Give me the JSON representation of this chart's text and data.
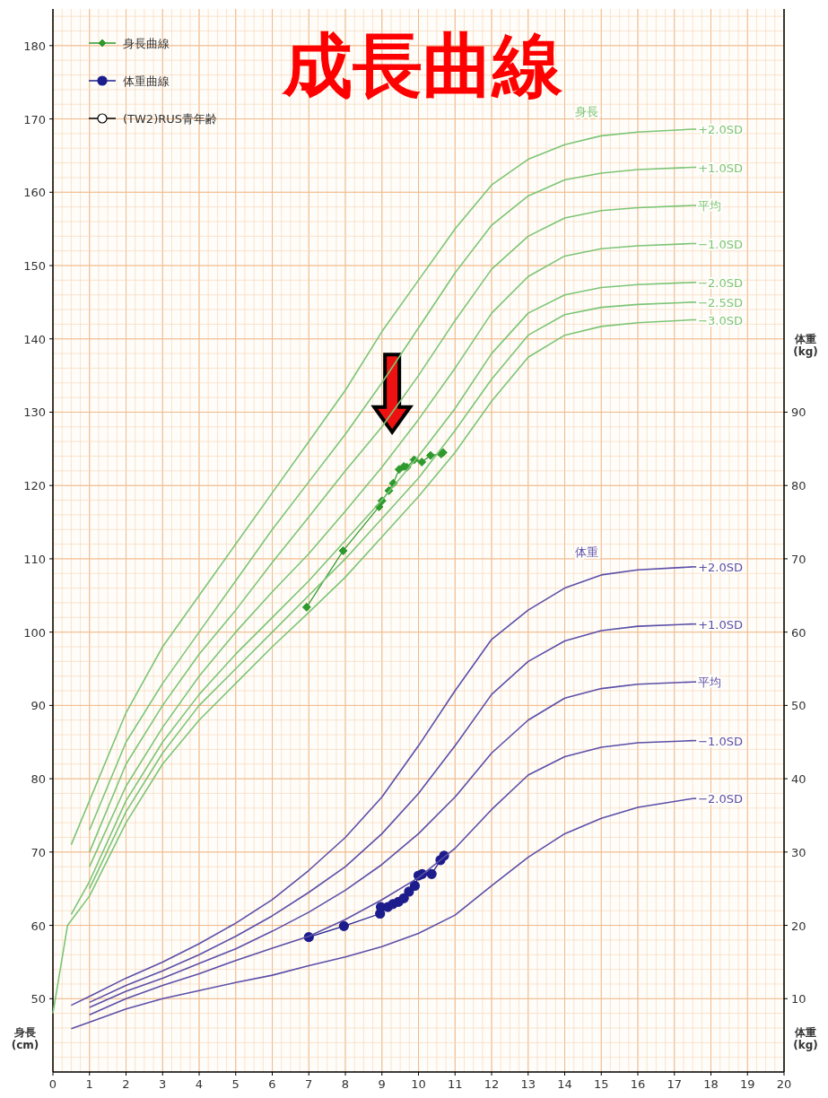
{
  "chart_data": {
    "type": "line",
    "title": "成長曲線",
    "ylabel": "身長\n(cm)",
    "y2label": "体重\n(kg)",
    "xlim": [
      0,
      20
    ],
    "xticks": [
      0,
      1,
      2,
      3,
      4,
      5,
      6,
      7,
      8,
      9,
      10,
      11,
      12,
      13,
      14,
      15,
      16,
      17,
      18,
      19,
      20
    ],
    "ylim": [
      40,
      185
    ],
    "yticks": [
      50,
      60,
      70,
      80,
      90,
      100,
      110,
      120,
      130,
      140,
      150,
      160,
      170,
      180
    ],
    "y2lim": [
      0,
      145
    ],
    "y2ticks": [
      10,
      20,
      30,
      40,
      50,
      60,
      70,
      80,
      90
    ],
    "grid": true,
    "legend": "top left",
    "annotations": [
      "身長",
      "体重"
    ],
    "series": [
      {
        "name": "身長曲線",
        "color": "#2e9a2e",
        "marker": "diamond",
        "x": [
          6.94,
          7.94,
          8.92,
          9.0,
          9.19,
          9.31,
          9.47,
          9.6,
          9.68,
          9.88,
          10.09,
          10.33,
          10.62,
          10.67
        ],
        "values": [
          103.4,
          111.1,
          117.1,
          117.9,
          119.3,
          120.3,
          122.2,
          122.6,
          122.5,
          123.5,
          123.2,
          124.1,
          124.3,
          124.5
        ]
      },
      {
        "name": "体重曲線",
        "color": "#1c1c8c",
        "marker": "circle",
        "axis": "y2",
        "x": [
          7.0,
          7.96,
          8.95,
          8.97,
          9.16,
          9.3,
          9.45,
          9.6,
          9.74,
          9.9,
          10.0,
          10.1,
          10.36,
          10.6,
          10.7
        ],
        "values": [
          18.4,
          19.9,
          21.6,
          22.5,
          22.5,
          22.9,
          23.2,
          23.7,
          24.6,
          25.4,
          26.8,
          27.0,
          27.0,
          28.9,
          29.5
        ]
      },
      {
        "name": "(TW2)RUS青年齢",
        "color": "#000000",
        "marker": "circle"
      },
      {
        "name": "+2.0SD",
        "color": "#7cc576",
        "marker": "none",
        "x": [
          0.5,
          1,
          2,
          3,
          4,
          5,
          6,
          7,
          8,
          9,
          10,
          11,
          12,
          13,
          14,
          15,
          16,
          17.5
        ],
        "values": [
          71,
          77,
          89,
          98,
          105,
          112,
          119,
          126,
          133,
          141,
          148,
          155,
          161,
          164.5,
          166.5,
          167.7,
          168.2,
          168.6
        ]
      },
      {
        "name": "+1.0SD",
        "color": "#7cc576",
        "marker": "none",
        "x": [
          1,
          2,
          3,
          4,
          5,
          6,
          7,
          8,
          9,
          10,
          11,
          12,
          13,
          14,
          15,
          16,
          17.5
        ],
        "values": [
          73,
          85,
          93,
          100,
          107,
          114,
          120.5,
          127,
          134,
          141.5,
          149,
          155.5,
          159.5,
          161.7,
          162.6,
          163.1,
          163.4
        ]
      },
      {
        "name": "平均",
        "color": "#7cc576",
        "marker": "none",
        "x": [
          1,
          2,
          3,
          4,
          5,
          6,
          7,
          8,
          9,
          10,
          11,
          12,
          13,
          14,
          15,
          16,
          17.5
        ],
        "values": [
          70,
          82,
          90,
          97,
          103,
          109.5,
          115.7,
          122,
          128,
          135,
          142.5,
          149.5,
          154,
          156.5,
          157.5,
          157.9,
          158.2
        ]
      },
      {
        "name": "−1.0SD",
        "color": "#7cc576",
        "marker": "none",
        "x": [
          1,
          2,
          3,
          4,
          5,
          6,
          7,
          8,
          9,
          10,
          11,
          12,
          13,
          14,
          15,
          16,
          17.5
        ],
        "values": [
          68,
          79,
          87,
          94,
          100,
          105.5,
          110.7,
          116.5,
          122.5,
          129,
          136,
          143.5,
          148.5,
          151.3,
          152.3,
          152.7,
          153
        ]
      },
      {
        "name": "−2.0SD",
        "color": "#7cc576",
        "marker": "none",
        "x": [
          0.5,
          1,
          2,
          3,
          4,
          5,
          6,
          7,
          8,
          9,
          10,
          11,
          12,
          13,
          14,
          15,
          16,
          17.5
        ],
        "values": [
          61.5,
          66,
          77,
          85,
          91.5,
          97,
          102,
          107,
          112.5,
          118,
          124,
          130.5,
          138,
          143.5,
          146,
          147,
          147.4,
          147.7
        ]
      },
      {
        "name": "−2.5SD",
        "color": "#7cc576",
        "marker": "none",
        "x": [
          1,
          2,
          3,
          4,
          5,
          6,
          7,
          8,
          9,
          10,
          11,
          12,
          13,
          14,
          15,
          16,
          17.5
        ],
        "values": [
          65,
          75.5,
          83.5,
          90,
          95,
          100,
          105,
          110,
          115.5,
          121,
          127.5,
          134.5,
          140.5,
          143.3,
          144.3,
          144.7,
          145
        ]
      },
      {
        "name": "−3.0SD",
        "color": "#7cc576",
        "marker": "none",
        "x": [
          0,
          0.4,
          1,
          2,
          3,
          4,
          5,
          6,
          7,
          8,
          9,
          10,
          11,
          12,
          13,
          14,
          15,
          16,
          17.5
        ],
        "values": [
          48,
          60,
          64,
          74,
          82,
          88,
          93,
          98,
          102.7,
          107.5,
          113,
          118.5,
          124.5,
          131.5,
          137.5,
          140.5,
          141.7,
          142.2,
          142.6
        ]
      },
      {
        "name": "+2.0SD",
        "color": "#5b4fa8",
        "marker": "none",
        "axis": "y2",
        "x": [
          0.5,
          1,
          2,
          3,
          4,
          5,
          6,
          7,
          8,
          9,
          10,
          11,
          12,
          13,
          14,
          15,
          16,
          17.5
        ],
        "values": [
          9.1,
          10.3,
          12.8,
          15,
          17.5,
          20.3,
          23.5,
          27.5,
          32,
          37.5,
          44.5,
          52,
          59,
          63,
          66,
          67.8,
          68.5,
          68.9
        ]
      },
      {
        "name": "+1.0SD",
        "color": "#5b4fa8",
        "marker": "none",
        "axis": "y2",
        "x": [
          1,
          2,
          3,
          4,
          5,
          6,
          7,
          8,
          9,
          10,
          11,
          12,
          13,
          14,
          15,
          16,
          17.5
        ],
        "values": [
          9.5,
          11.8,
          13.8,
          16,
          18.5,
          21.3,
          24.5,
          28,
          32.5,
          38,
          44.5,
          51.5,
          56,
          58.8,
          60.2,
          60.8,
          61.1
        ]
      },
      {
        "name": "平均",
        "color": "#5b4fa8",
        "marker": "none",
        "axis": "y2",
        "x": [
          1,
          2,
          3,
          4,
          5,
          6,
          7,
          8,
          9,
          10,
          11,
          12,
          13,
          14,
          15,
          16,
          17.5
        ],
        "values": [
          8.8,
          11,
          12.8,
          14.8,
          16.8,
          19.2,
          21.8,
          24.8,
          28.3,
          32.5,
          37.5,
          43.5,
          48,
          51,
          52.3,
          52.9,
          53.2
        ]
      },
      {
        "name": "−1.0SD",
        "color": "#5b4fa8",
        "marker": "none",
        "axis": "y2",
        "x": [
          1,
          2,
          3,
          4,
          5,
          6,
          7,
          8,
          9,
          10,
          11,
          12,
          13,
          14,
          15,
          16,
          17.5
        ],
        "values": [
          7.8,
          10,
          11.8,
          13.4,
          15.2,
          16.9,
          18.5,
          20.8,
          23.5,
          26.5,
          30.5,
          35.8,
          40.5,
          43,
          44.3,
          44.9,
          45.2
        ]
      },
      {
        "name": "−2.0SD",
        "color": "#5b4fa8",
        "marker": "none",
        "axis": "y2",
        "x": [
          0.5,
          1,
          2,
          3,
          4,
          5,
          6,
          7,
          8,
          9,
          10,
          11,
          12,
          13,
          14,
          15,
          16,
          17.5
        ],
        "values": [
          5.9,
          6.8,
          8.6,
          10,
          11.1,
          12.2,
          13.2,
          14.5,
          15.7,
          17.1,
          18.9,
          21.4,
          25.4,
          29.3,
          32.5,
          34.6,
          36.1,
          37.3
        ]
      }
    ]
  }
}
